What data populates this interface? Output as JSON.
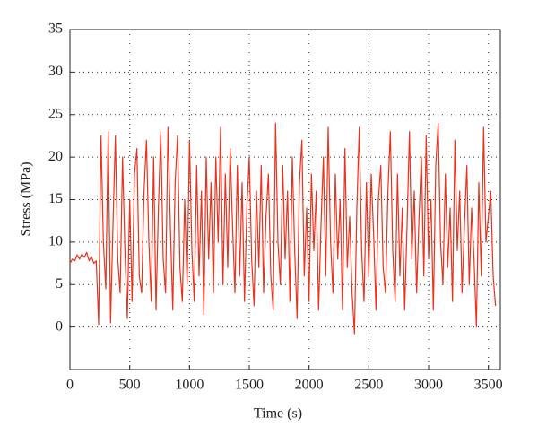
{
  "chart_data": {
    "type": "line",
    "xlabel": "Time (s)",
    "ylabel": "Stress (MPa)",
    "color": "#e8321e",
    "grid": true,
    "xlim": [
      0,
      3600
    ],
    "xticks": [
      0,
      500,
      1000,
      1500,
      2000,
      2500,
      3000,
      3500
    ],
    "ylim": [
      -5,
      35
    ],
    "yticks": [
      0,
      5,
      10,
      15,
      20,
      25,
      30,
      35
    ],
    "x": [
      0,
      20,
      40,
      60,
      80,
      100,
      120,
      140,
      160,
      180,
      200,
      220,
      240,
      260,
      280,
      300,
      320,
      340,
      360,
      380,
      400,
      420,
      440,
      460,
      480,
      500,
      520,
      540,
      560,
      580,
      600,
      620,
      640,
      660,
      680,
      700,
      720,
      740,
      760,
      780,
      800,
      820,
      840,
      860,
      880,
      900,
      920,
      940,
      960,
      980,
      1000,
      1020,
      1040,
      1060,
      1080,
      1100,
      1120,
      1140,
      1160,
      1180,
      1200,
      1220,
      1240,
      1260,
      1280,
      1300,
      1320,
      1340,
      1360,
      1380,
      1400,
      1420,
      1440,
      1460,
      1480,
      1500,
      1520,
      1540,
      1560,
      1580,
      1600,
      1620,
      1640,
      1660,
      1680,
      1700,
      1720,
      1740,
      1760,
      1780,
      1800,
      1820,
      1840,
      1860,
      1880,
      1900,
      1920,
      1940,
      1960,
      1980,
      2000,
      2020,
      2040,
      2060,
      2080,
      2100,
      2120,
      2140,
      2160,
      2180,
      2200,
      2220,
      2240,
      2260,
      2280,
      2300,
      2320,
      2340,
      2360,
      2380,
      2400,
      2420,
      2440,
      2460,
      2480,
      2500,
      2520,
      2540,
      2560,
      2580,
      2600,
      2620,
      2640,
      2660,
      2680,
      2700,
      2720,
      2740,
      2760,
      2780,
      2800,
      2820,
      2840,
      2860,
      2880,
      2900,
      2920,
      2940,
      2960,
      2980,
      3000,
      3020,
      3040,
      3060,
      3080,
      3100,
      3120,
      3140,
      3160,
      3180,
      3200,
      3220,
      3240,
      3260,
      3280,
      3300,
      3320,
      3340,
      3360,
      3380,
      3400,
      3420,
      3440,
      3460,
      3480,
      3500,
      3520,
      3540,
      3560
    ],
    "values": [
      7.5,
      8,
      7.8,
      8.5,
      8,
      8.6,
      8.2,
      8.8,
      7.8,
      8.3,
      7.5,
      7.8,
      0.3,
      22.5,
      10,
      4.5,
      23,
      0.5,
      12,
      22.5,
      8,
      4,
      20,
      9,
      1,
      15,
      3,
      18,
      21,
      6,
      4,
      16,
      22,
      10,
      3,
      20,
      2,
      14,
      23,
      8,
      4,
      23.5,
      12,
      2,
      17,
      22.5,
      7,
      3,
      15,
      5,
      22,
      9,
      3,
      19,
      6,
      16,
      1.5,
      20,
      8,
      17,
      4,
      20,
      10,
      23.5,
      5,
      18,
      7,
      21,
      12,
      4,
      19,
      6,
      17,
      3,
      14,
      20,
      8,
      2.5,
      16,
      7,
      19,
      4,
      13,
      18,
      6,
      2,
      24,
      10,
      5,
      19,
      8,
      16,
      3,
      20,
      9,
      1,
      17,
      22,
      6,
      14,
      3,
      18,
      9,
      16,
      2,
      12,
      20,
      6,
      23.5,
      10,
      4,
      18,
      8,
      15,
      2,
      21,
      7,
      13,
      4,
      -0.8,
      14,
      23.5,
      9,
      3,
      17,
      6,
      18,
      11,
      2,
      15,
      19,
      7,
      4,
      16,
      23,
      9,
      3,
      18,
      6,
      14,
      2,
      12,
      23,
      8,
      16,
      4,
      13,
      20,
      6,
      22.5,
      8,
      15,
      2,
      19,
      24,
      10,
      5,
      18,
      7,
      14,
      3,
      22,
      9,
      16,
      4,
      12,
      19,
      5,
      14,
      8,
      0,
      17,
      6,
      23.5,
      10,
      13,
      16,
      6,
      2.5
    ]
  }
}
